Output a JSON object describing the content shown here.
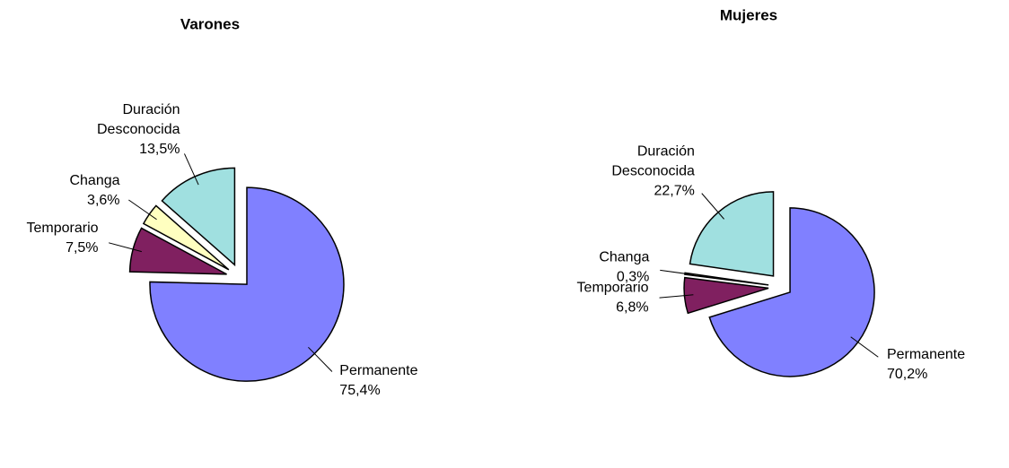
{
  "chart_data": [
    {
      "type": "pie",
      "title": "Varones",
      "categories": [
        "Permanente",
        "Temporario",
        "Changa",
        "Duración Desconocida"
      ],
      "values": [
        75.4,
        7.5,
        3.6,
        13.5
      ],
      "value_labels": [
        "75,4%",
        "7,5%",
        "3,6%",
        "13,5%"
      ],
      "colors": [
        "#8080ff",
        "#802060",
        "#ffffc0",
        "#a0e0e0"
      ]
    },
    {
      "type": "pie",
      "title": "Mujeres",
      "categories": [
        "Permanente",
        "Temporario",
        "Changa",
        "Duración Desconocida"
      ],
      "values": [
        70.2,
        6.8,
        0.3,
        22.7
      ],
      "value_labels": [
        "70,2%",
        "6,8%",
        "0,3%",
        "22,7%"
      ],
      "colors": [
        "#8080ff",
        "#802060",
        "#ffffc0",
        "#a0e0e0"
      ]
    }
  ]
}
